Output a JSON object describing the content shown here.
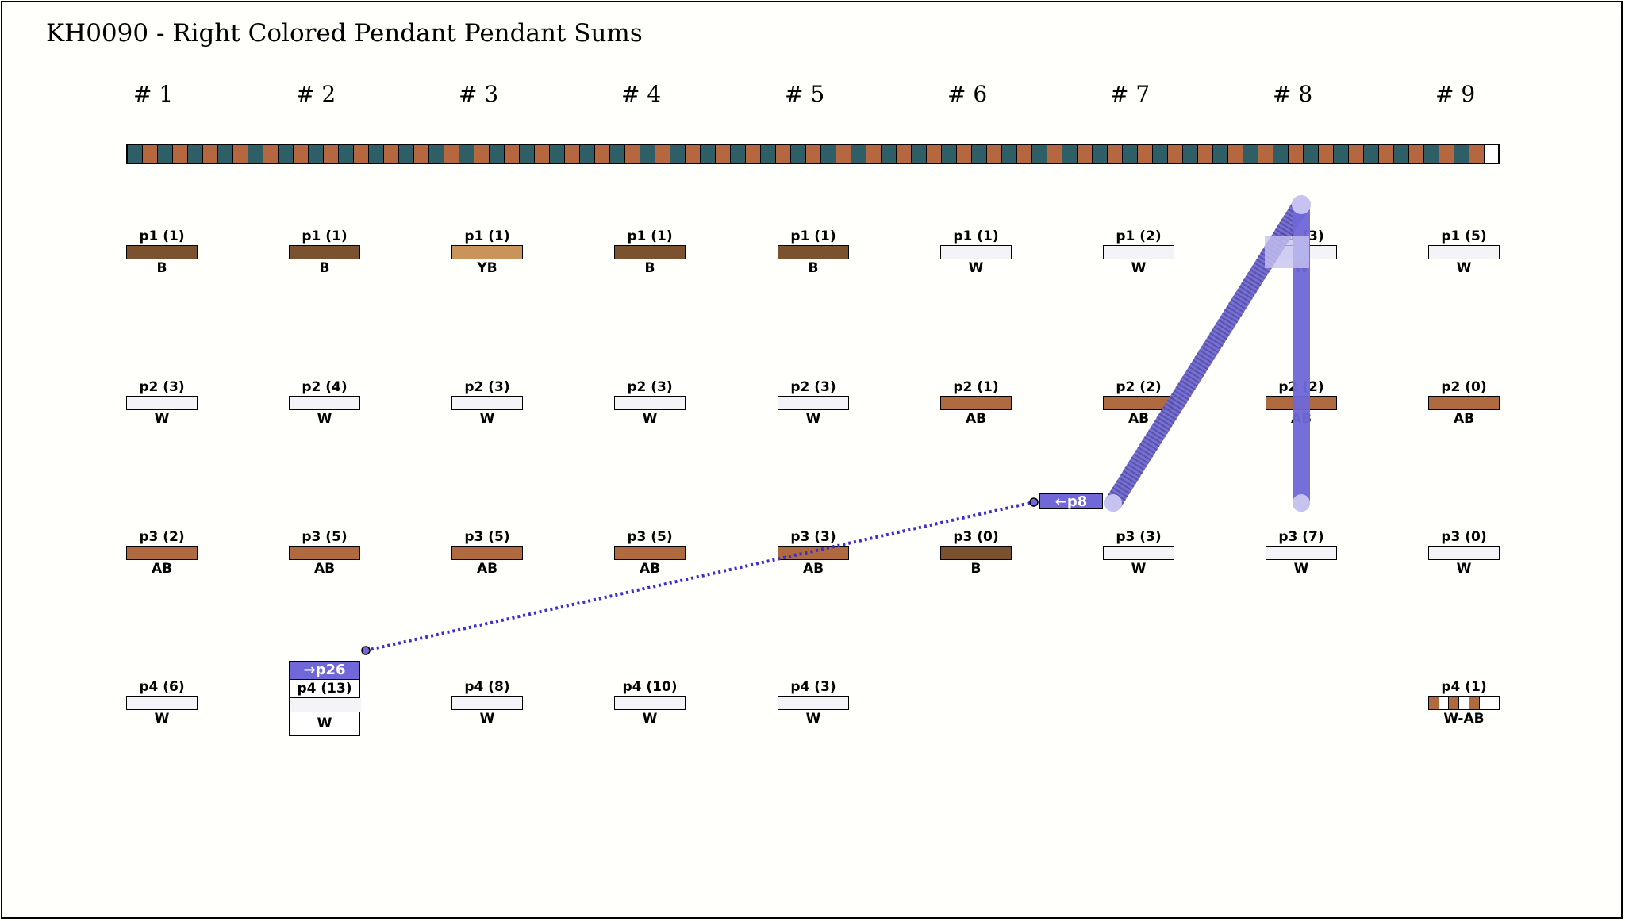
{
  "title": "KH0090 - Right Colored Pendant Pendant Sums",
  "colors": {
    "B": "#7b5230",
    "YB": "#c8945a",
    "W": "#f4f4f8",
    "AB": "#b06a40",
    "teal": "#2e5f67",
    "orange": "#b5673f",
    "link": "#7068d8",
    "link_dark": "#3b2fd0"
  },
  "columns": [
    {
      "header": "# 1",
      "pendants": [
        {
          "label": "p1 (1)",
          "color": "B"
        },
        {
          "label": "p2 (3)",
          "color": "W"
        },
        {
          "label": "p3 (2)",
          "color": "AB"
        },
        {
          "label": "p4 (6)",
          "color": "W"
        }
      ]
    },
    {
      "header": "# 2",
      "pendants": [
        {
          "label": "p1 (1)",
          "color": "B"
        },
        {
          "label": "p2 (4)",
          "color": "W"
        },
        {
          "label": "p3 (5)",
          "color": "AB"
        },
        {
          "label": "p4 (13)",
          "color": "W",
          "link": "→p26"
        }
      ]
    },
    {
      "header": "# 3",
      "pendants": [
        {
          "label": "p1 (1)",
          "color": "YB"
        },
        {
          "label": "p2 (3)",
          "color": "W"
        },
        {
          "label": "p3 (5)",
          "color": "AB"
        },
        {
          "label": "p4 (8)",
          "color": "W"
        }
      ]
    },
    {
      "header": "# 4",
      "pendants": [
        {
          "label": "p1 (1)",
          "color": "B"
        },
        {
          "label": "p2 (3)",
          "color": "W"
        },
        {
          "label": "p3 (5)",
          "color": "AB"
        },
        {
          "label": "p4 (10)",
          "color": "W"
        }
      ]
    },
    {
      "header": "# 5",
      "pendants": [
        {
          "label": "p1 (1)",
          "color": "B"
        },
        {
          "label": "p2 (3)",
          "color": "W"
        },
        {
          "label": "p3 (3)",
          "color": "AB"
        },
        {
          "label": "p4 (3)",
          "color": "W"
        }
      ]
    },
    {
      "header": "# 6",
      "pendants": [
        {
          "label": "p1 (1)",
          "color": "W"
        },
        {
          "label": "p2 (1)",
          "color": "AB"
        },
        {
          "label": "p3 (0)",
          "color": "B"
        }
      ]
    },
    {
      "header": "# 7",
      "pendants": [
        {
          "label": "p1 (2)",
          "color": "W"
        },
        {
          "label": "p2 (2)",
          "color": "AB"
        },
        {
          "label": "p3 (3)",
          "color": "W"
        }
      ]
    },
    {
      "header": "# 8",
      "pendants": [
        {
          "label": "p1 (3)",
          "color": "W"
        },
        {
          "label": "p2 (2)",
          "color": "AB"
        },
        {
          "label": "p3 (7)",
          "color": "W"
        }
      ]
    },
    {
      "header": "# 9",
      "pendants": [
        {
          "label": "p1 (5)",
          "color": "W"
        },
        {
          "label": "p2 (0)",
          "color": "AB"
        },
        {
          "label": "p3 (0)",
          "color": "W"
        },
        {
          "label": "p4 (1)",
          "color": "W-AB",
          "multicolor": [
            "AB",
            "W",
            "AB",
            "W",
            "AB",
            "W",
            "W"
          ]
        }
      ]
    }
  ],
  "link_tag": "←p8"
}
